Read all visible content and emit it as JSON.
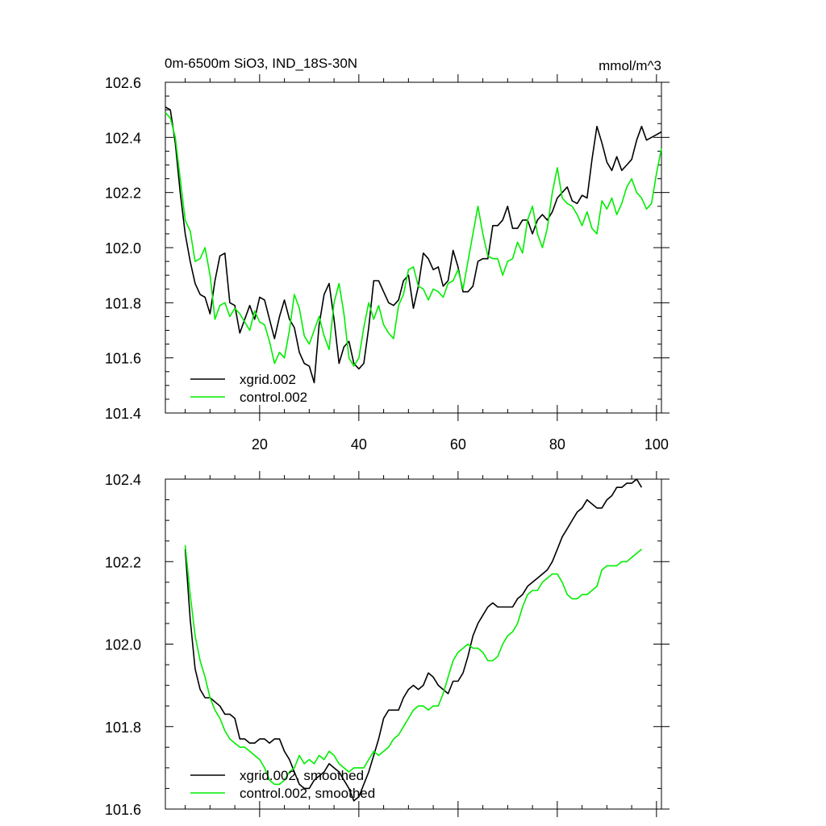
{
  "chart_data": [
    {
      "type": "line",
      "title": "0m-6500m SiO3, IND_18S-30N",
      "units_label": "mmol/m^3",
      "xlabel": "",
      "ylabel": "",
      "xlim": [
        1,
        101
      ],
      "ylim": [
        101.4,
        102.6
      ],
      "xticks": [
        20,
        40,
        60,
        80,
        100
      ],
      "xtick_labels": [
        "20",
        "40",
        "60",
        "80",
        "100"
      ],
      "yticks": [
        101.4,
        101.6,
        101.8,
        102.0,
        102.2,
        102.4,
        102.6
      ],
      "ytick_labels": [
        "101.4",
        "101.6",
        "101.8",
        "102.0",
        "102.2",
        "102.4",
        "102.6"
      ],
      "legend_position": "bottom-left",
      "series": [
        {
          "name": "xgrid.002",
          "color": "#000000",
          "x": [
            1,
            2,
            3,
            4,
            5,
            6,
            7,
            8,
            9,
            10,
            11,
            12,
            13,
            14,
            15,
            16,
            17,
            18,
            19,
            20,
            21,
            22,
            23,
            24,
            25,
            26,
            27,
            28,
            29,
            30,
            31,
            32,
            33,
            34,
            35,
            36,
            37,
            38,
            39,
            40,
            41,
            42,
            43,
            44,
            45,
            46,
            47,
            48,
            49,
            50,
            51,
            52,
            53,
            54,
            55,
            56,
            57,
            58,
            59,
            60,
            61,
            62,
            63,
            64,
            65,
            66,
            67,
            68,
            69,
            70,
            71,
            72,
            73,
            74,
            75,
            76,
            77,
            78,
            79,
            80,
            81,
            82,
            83,
            84,
            85,
            86,
            87,
            88,
            89,
            90,
            91,
            92,
            93,
            94,
            95,
            96,
            97,
            98,
            99,
            100,
            101
          ],
          "values": [
            102.51,
            102.5,
            102.38,
            102.2,
            102.05,
            101.95,
            101.87,
            101.83,
            101.82,
            101.76,
            101.88,
            101.97,
            101.98,
            101.8,
            101.79,
            101.69,
            101.74,
            101.79,
            101.74,
            101.82,
            101.81,
            101.74,
            101.67,
            101.75,
            101.81,
            101.74,
            101.71,
            101.62,
            101.58,
            101.57,
            101.51,
            101.72,
            101.83,
            101.87,
            101.74,
            101.58,
            101.64,
            101.66,
            101.58,
            101.56,
            101.58,
            101.71,
            101.88,
            101.88,
            101.84,
            101.8,
            101.79,
            101.81,
            101.88,
            101.9,
            101.78,
            101.86,
            101.98,
            101.96,
            101.92,
            101.93,
            101.86,
            101.88,
            101.99,
            101.93,
            101.84,
            101.84,
            101.86,
            101.95,
            101.96,
            101.96,
            102.08,
            102.08,
            102.1,
            102.15,
            102.07,
            102.07,
            102.1,
            102.1,
            102.05,
            102.1,
            102.12,
            102.1,
            102.13,
            102.18,
            102.2,
            102.22,
            102.17,
            102.16,
            102.19,
            102.18,
            102.32,
            102.44,
            102.38,
            102.31,
            102.28,
            102.33,
            102.28,
            102.3,
            102.32,
            102.39,
            102.44,
            102.39,
            102.4,
            102.41,
            102.42
          ]
        },
        {
          "name": "control.002",
          "color": "#00ee00",
          "x": [
            1,
            2,
            3,
            4,
            5,
            6,
            7,
            8,
            9,
            10,
            11,
            12,
            13,
            14,
            15,
            16,
            17,
            18,
            19,
            20,
            21,
            22,
            23,
            24,
            25,
            26,
            27,
            28,
            29,
            30,
            31,
            32,
            33,
            34,
            35,
            36,
            37,
            38,
            39,
            40,
            41,
            42,
            43,
            44,
            45,
            46,
            47,
            48,
            49,
            50,
            51,
            52,
            53,
            54,
            55,
            56,
            57,
            58,
            59,
            60,
            61,
            62,
            63,
            64,
            65,
            66,
            67,
            68,
            69,
            70,
            71,
            72,
            73,
            74,
            75,
            76,
            77,
            78,
            79,
            80,
            81,
            82,
            83,
            84,
            85,
            86,
            87,
            88,
            89,
            90,
            91,
            92,
            93,
            94,
            95,
            96,
            97,
            98,
            99,
            100,
            101
          ],
          "values": [
            102.49,
            102.47,
            102.4,
            102.25,
            102.1,
            102.06,
            101.95,
            101.96,
            102.0,
            101.9,
            101.74,
            101.79,
            101.8,
            101.75,
            101.78,
            101.76,
            101.73,
            101.7,
            101.77,
            101.73,
            101.72,
            101.66,
            101.58,
            101.62,
            101.6,
            101.7,
            101.83,
            101.78,
            101.68,
            101.65,
            101.7,
            101.75,
            101.68,
            101.63,
            101.8,
            101.87,
            101.76,
            101.6,
            101.57,
            101.6,
            101.71,
            101.8,
            101.74,
            101.79,
            101.72,
            101.69,
            101.67,
            101.79,
            101.83,
            101.92,
            101.93,
            101.86,
            101.85,
            101.81,
            101.85,
            101.84,
            101.82,
            101.87,
            101.88,
            101.92,
            101.85,
            101.95,
            102.05,
            102.15,
            102.05,
            101.97,
            101.96,
            101.96,
            101.9,
            101.95,
            101.96,
            102.02,
            101.98,
            102.1,
            102.15,
            102.05,
            102.0,
            102.07,
            102.2,
            102.29,
            102.18,
            102.16,
            102.15,
            102.12,
            102.08,
            102.13,
            102.07,
            102.05,
            102.17,
            102.14,
            102.18,
            102.12,
            102.16,
            102.22,
            102.25,
            102.2,
            102.18,
            102.14,
            102.16,
            102.27,
            102.36
          ]
        }
      ]
    },
    {
      "type": "line",
      "title": "",
      "xlabel": "",
      "ylabel": "",
      "xlim": [
        1,
        101
      ],
      "ylim": [
        101.6,
        102.4
      ],
      "xticks": [
        20,
        40,
        60,
        80,
        100
      ],
      "yticks": [
        101.6,
        101.8,
        102.0,
        102.2,
        102.4
      ],
      "ytick_labels": [
        "101.6",
        "101.8",
        "102.0",
        "102.2",
        "102.4"
      ],
      "legend_position": "bottom-left",
      "series": [
        {
          "name": "xgrid.002, smoothed",
          "color": "#000000",
          "x": [
            5,
            6,
            7,
            8,
            9,
            10,
            11,
            12,
            13,
            14,
            15,
            16,
            17,
            18,
            19,
            20,
            21,
            22,
            23,
            24,
            25,
            26,
            27,
            28,
            29,
            30,
            31,
            32,
            33,
            34,
            35,
            36,
            37,
            38,
            39,
            40,
            41,
            42,
            43,
            44,
            45,
            46,
            47,
            48,
            49,
            50,
            51,
            52,
            53,
            54,
            55,
            56,
            57,
            58,
            59,
            60,
            61,
            62,
            63,
            64,
            65,
            66,
            67,
            68,
            69,
            70,
            71,
            72,
            73,
            74,
            75,
            76,
            77,
            78,
            79,
            80,
            81,
            82,
            83,
            84,
            85,
            86,
            87,
            88,
            89,
            90,
            91,
            92,
            93,
            94,
            95,
            96,
            97
          ],
          "values": [
            102.23,
            102.06,
            101.94,
            101.89,
            101.87,
            101.87,
            101.86,
            101.85,
            101.83,
            101.83,
            101.82,
            101.77,
            101.77,
            101.76,
            101.76,
            101.77,
            101.77,
            101.76,
            101.77,
            101.77,
            101.74,
            101.72,
            101.69,
            101.66,
            101.65,
            101.65,
            101.67,
            101.68,
            101.69,
            101.71,
            101.7,
            101.69,
            101.67,
            101.65,
            101.62,
            101.63,
            101.66,
            101.69,
            101.73,
            101.77,
            101.82,
            101.84,
            101.84,
            101.84,
            101.87,
            101.89,
            101.9,
            101.89,
            101.9,
            101.93,
            101.92,
            101.9,
            101.89,
            101.88,
            101.91,
            101.91,
            101.93,
            101.97,
            102.02,
            102.05,
            102.07,
            102.09,
            102.1,
            102.09,
            102.09,
            102.09,
            102.09,
            102.11,
            102.12,
            102.14,
            102.15,
            102.16,
            102.17,
            102.18,
            102.2,
            102.23,
            102.26,
            102.28,
            102.3,
            102.32,
            102.33,
            102.35,
            102.34,
            102.33,
            102.33,
            102.35,
            102.36,
            102.38,
            102.38,
            102.39,
            102.39,
            102.4,
            102.38
          ]
        },
        {
          "name": "control.002, smoothed",
          "color": "#00ee00",
          "x": [
            5,
            6,
            7,
            8,
            9,
            10,
            11,
            12,
            13,
            14,
            15,
            16,
            17,
            18,
            19,
            20,
            21,
            22,
            23,
            24,
            25,
            26,
            27,
            28,
            29,
            30,
            31,
            32,
            33,
            34,
            35,
            36,
            37,
            38,
            39,
            40,
            41,
            42,
            43,
            44,
            45,
            46,
            47,
            48,
            49,
            50,
            51,
            52,
            53,
            54,
            55,
            56,
            57,
            58,
            59,
            60,
            61,
            62,
            63,
            64,
            65,
            66,
            67,
            68,
            69,
            70,
            71,
            72,
            73,
            74,
            75,
            76,
            77,
            78,
            79,
            80,
            81,
            82,
            83,
            84,
            85,
            86,
            87,
            88,
            89,
            90,
            91,
            92,
            93,
            94,
            95,
            96,
            97
          ],
          "values": [
            102.24,
            102.12,
            102.02,
            101.96,
            101.92,
            101.87,
            101.84,
            101.82,
            101.79,
            101.77,
            101.76,
            101.75,
            101.75,
            101.74,
            101.73,
            101.72,
            101.7,
            101.67,
            101.66,
            101.66,
            101.67,
            101.69,
            101.7,
            101.73,
            101.71,
            101.72,
            101.71,
            101.73,
            101.72,
            101.74,
            101.73,
            101.71,
            101.7,
            101.69,
            101.7,
            101.7,
            101.7,
            101.72,
            101.74,
            101.73,
            101.74,
            101.75,
            101.77,
            101.78,
            101.8,
            101.82,
            101.84,
            101.85,
            101.85,
            101.84,
            101.85,
            101.85,
            101.88,
            101.92,
            101.96,
            101.98,
            101.99,
            102.0,
            101.99,
            101.99,
            101.98,
            101.96,
            101.96,
            101.97,
            102.0,
            102.02,
            102.03,
            102.05,
            102.09,
            102.12,
            102.13,
            102.13,
            102.15,
            102.16,
            102.17,
            102.17,
            102.15,
            102.12,
            102.11,
            102.11,
            102.12,
            102.12,
            102.13,
            102.14,
            102.18,
            102.19,
            102.19,
            102.19,
            102.2,
            102.2,
            102.21,
            102.22,
            102.23
          ]
        }
      ]
    }
  ]
}
